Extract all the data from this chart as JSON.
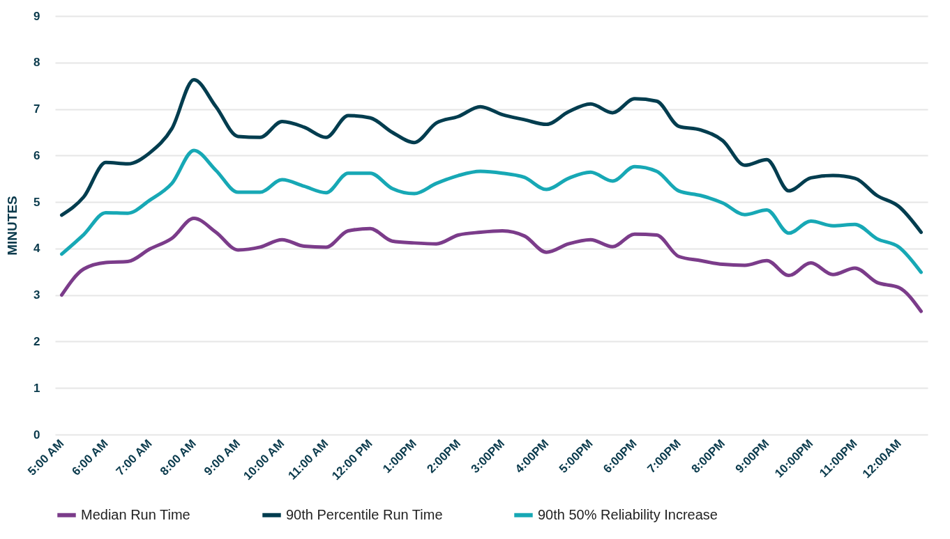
{
  "chart_data": {
    "type": "line",
    "ylabel": "MINUTES",
    "categories": [
      "5:00 AM",
      null,
      "6:00 AM",
      null,
      "7:00 AM",
      null,
      "8:00 AM",
      null,
      "9:00 AM",
      null,
      "10:00 AM",
      null,
      "11:00 AM",
      null,
      "12:00 PM",
      null,
      "1:00PM",
      null,
      "2:00PM",
      null,
      "3:00PM",
      null,
      "4:00PM",
      null,
      "5:00PM",
      null,
      "6:00PM",
      null,
      "7:00PM",
      null,
      "8:00PM",
      null,
      "9:00PM",
      null,
      "10:00PM",
      null,
      "11:00PM",
      null,
      "12:00AM",
      null
    ],
    "series": [
      {
        "name": "Median Run Time",
        "color": "#7b3c8a",
        "values": [
          3.0,
          3.56,
          3.7,
          3.72,
          3.99,
          4.22,
          4.65,
          4.35,
          3.97,
          4.03,
          4.19,
          4.05,
          4.03,
          4.38,
          4.43,
          4.16,
          4.12,
          4.1,
          4.29,
          4.35,
          4.38,
          4.27,
          3.92,
          4.1,
          4.19,
          4.04,
          4.31,
          4.29,
          3.83,
          3.74,
          3.66,
          3.64,
          3.74,
          3.42,
          3.69,
          3.44,
          3.58,
          3.27,
          3.16,
          2.65
        ]
      },
      {
        "name": "90th Percentile Run Time",
        "color": "#023d4f",
        "values": [
          4.72,
          5.11,
          5.85,
          5.82,
          6.06,
          6.58,
          7.63,
          7.05,
          6.41,
          6.39,
          6.73,
          6.61,
          6.39,
          6.86,
          6.81,
          6.5,
          6.28,
          6.7,
          6.84,
          7.05,
          6.88,
          6.77,
          6.67,
          6.94,
          7.11,
          6.92,
          7.22,
          7.17,
          6.63,
          6.55,
          6.32,
          5.79,
          5.91,
          5.24,
          5.52,
          5.57,
          5.51,
          5.14,
          4.9,
          4.35
        ]
      },
      {
        "name": "90th 50% Reliability Increase",
        "color": "#17a8b5",
        "values": [
          3.88,
          4.3,
          4.77,
          4.76,
          5.04,
          5.4,
          6.11,
          5.68,
          5.21,
          5.21,
          5.48,
          5.34,
          5.2,
          5.62,
          5.62,
          5.29,
          5.18,
          5.4,
          5.57,
          5.66,
          5.62,
          5.53,
          5.27,
          5.51,
          5.64,
          5.45,
          5.76,
          5.66,
          5.24,
          5.14,
          4.98,
          4.73,
          4.83,
          4.33,
          4.59,
          4.49,
          4.52,
          4.21,
          4.03,
          3.49
        ]
      }
    ],
    "ylim": [
      0,
      9
    ],
    "yticks": [
      0,
      1,
      2,
      3,
      4,
      5,
      6,
      7,
      8,
      9
    ],
    "grid": "y",
    "legend": "bottom",
    "line_style": "solid",
    "marker": "none"
  }
}
